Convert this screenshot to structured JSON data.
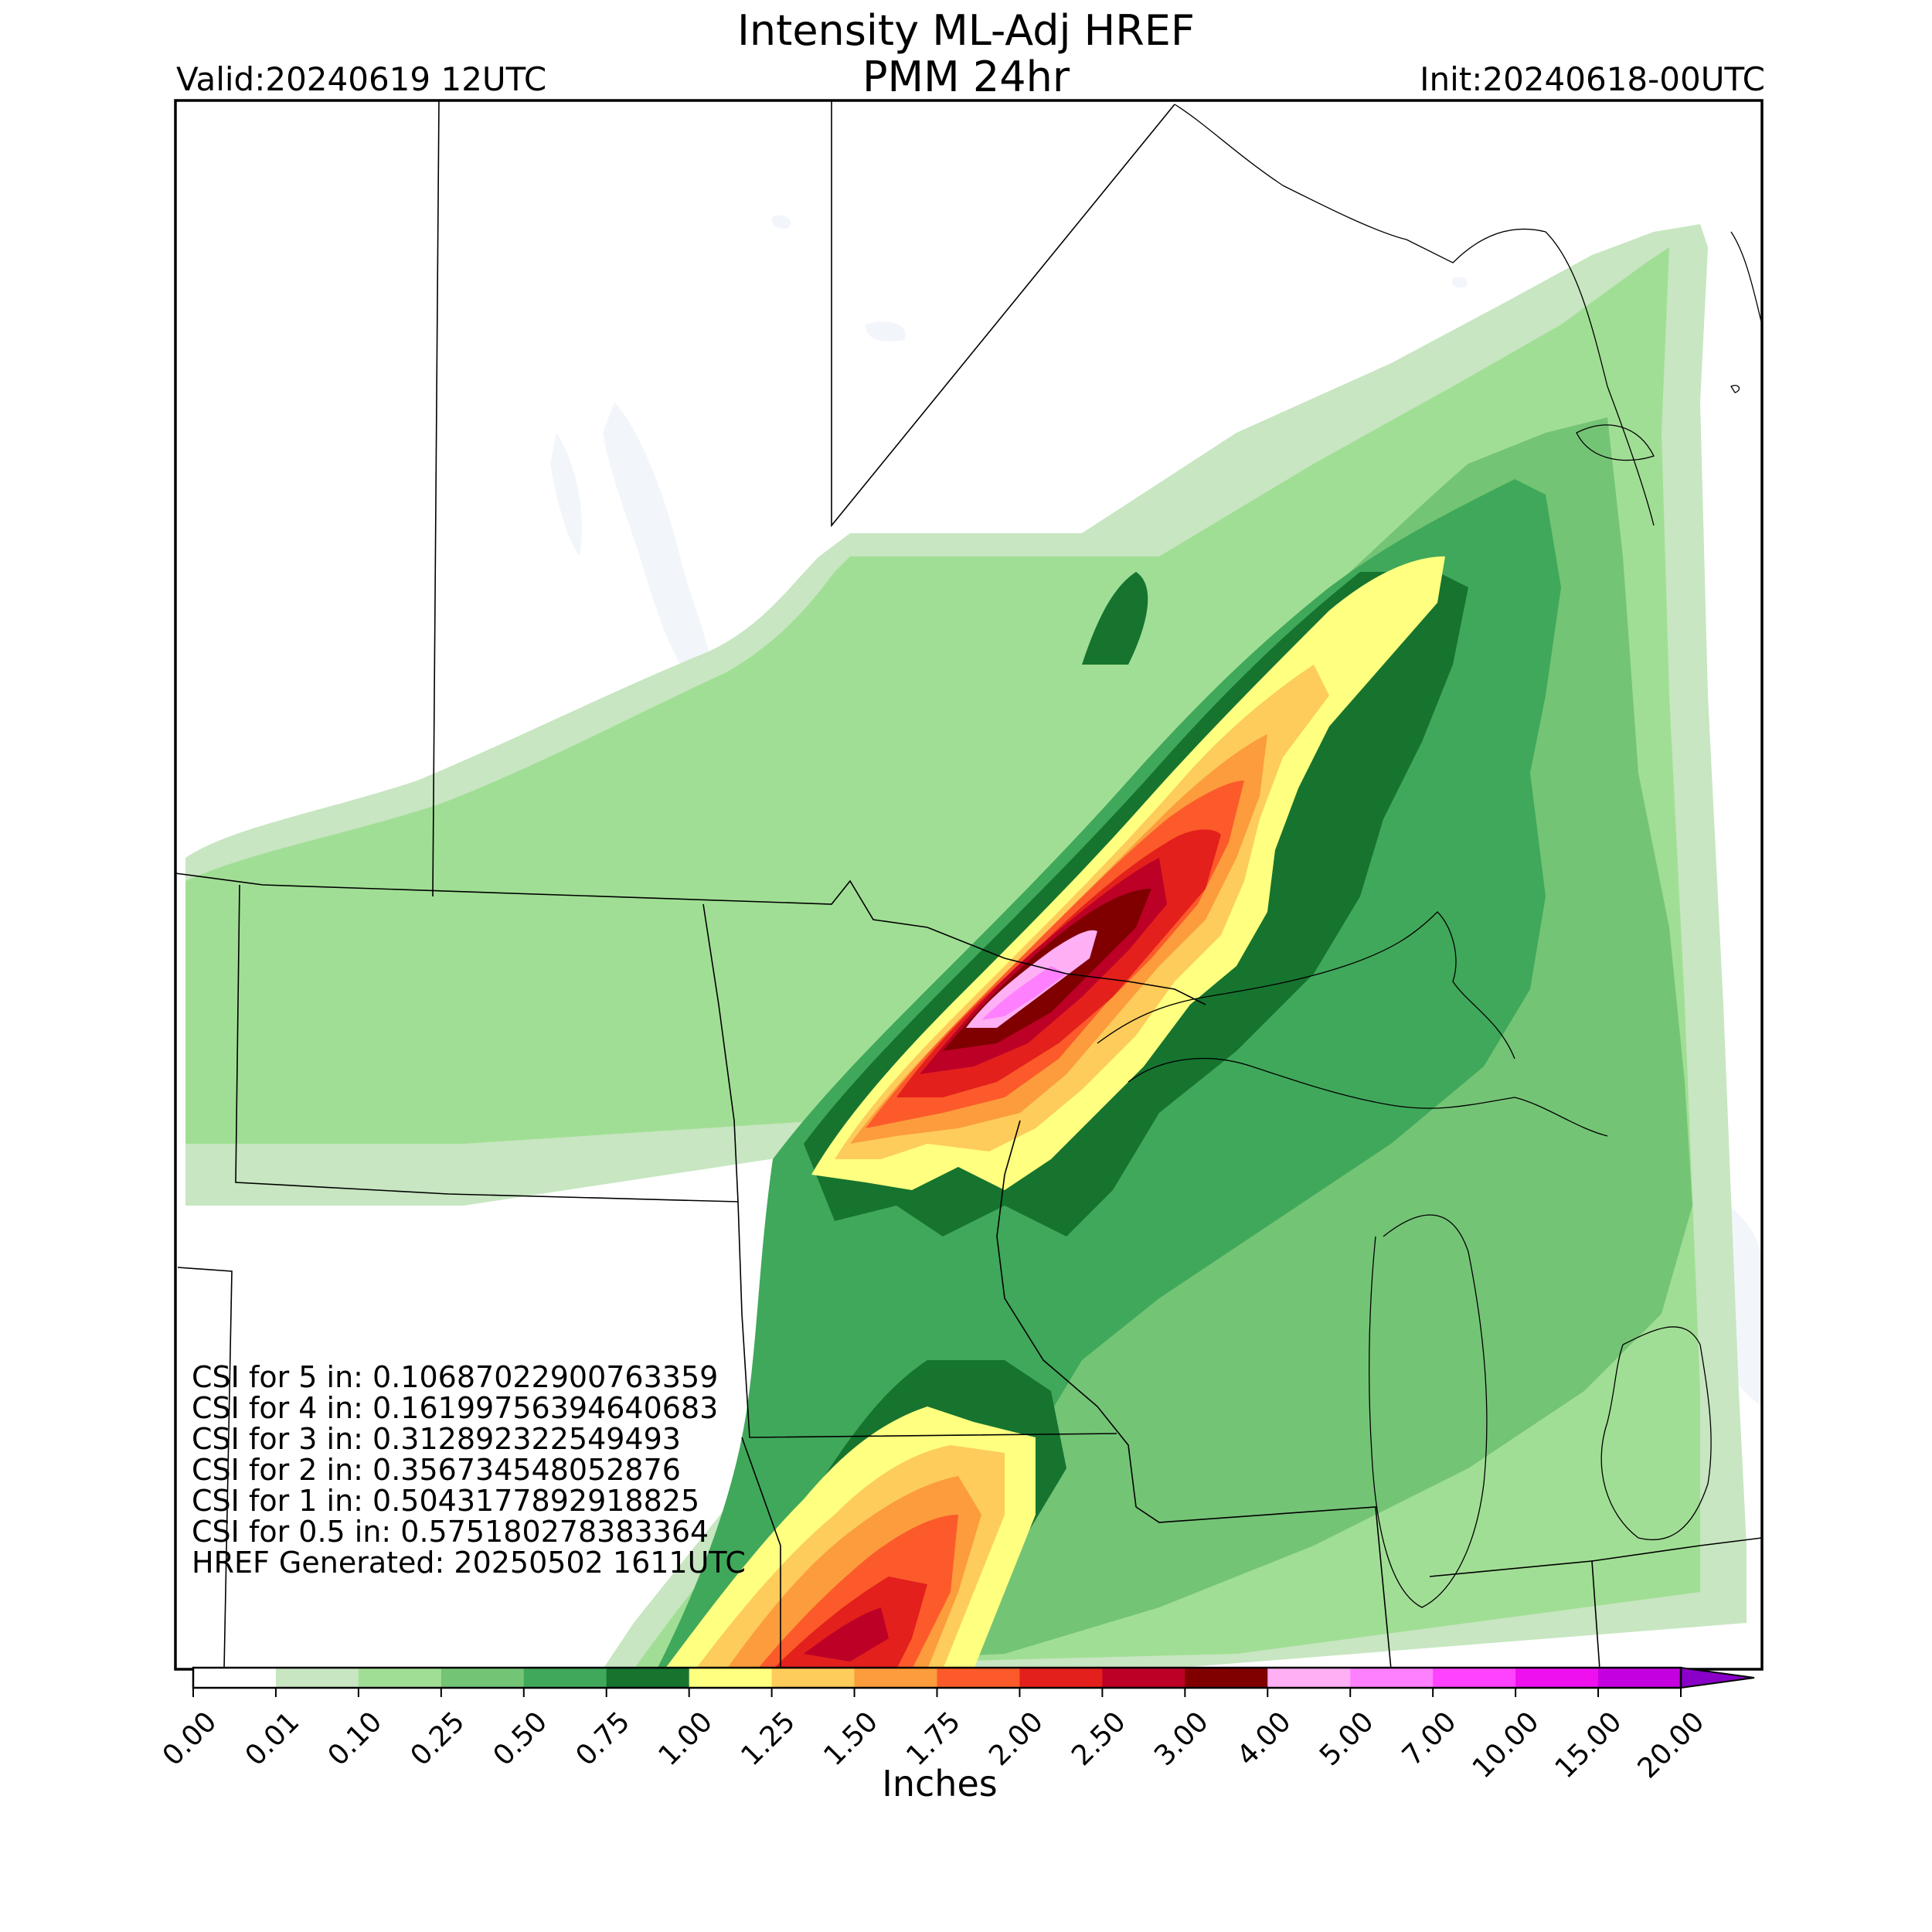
{
  "header": {
    "title_line1": "Intensity ML-Adj HREF",
    "title_line2": "PMM 24hr",
    "valid": "Valid:20240619 12UTC",
    "init": "Init:20240618-00UTC"
  },
  "stats": [
    "CSI for 5 in: 0.10687022900763359",
    "CSI for 4 in: 0.16199756394640683",
    "CSI for 3 in: 0.312892322549493",
    "CSI for 2 in: 0.356734548052876",
    "CSI for 1 in: 0.5043177892918825",
    "CSI for 0.5 in: 0.575180278383364",
    "HREF Generated: 20250502 1611UTC"
  ],
  "colorbar": {
    "units_label": "Inches",
    "ticks": [
      "0.00",
      "0.01",
      "0.10",
      "0.25",
      "0.50",
      "0.75",
      "1.00",
      "1.25",
      "1.50",
      "1.75",
      "2.00",
      "2.50",
      "3.00",
      "4.00",
      "5.00",
      "7.00",
      "10.00",
      "15.00",
      "20.00"
    ],
    "colors": [
      "#ffffff",
      "#c7e6c1",
      "#a1de95",
      "#74c476",
      "#40a85a",
      "#16742f",
      "#ffff80",
      "#fdcc5a",
      "#fc9c3c",
      "#fc5a2a",
      "#e3201c",
      "#bd0026",
      "#800000",
      "#ffb0f4",
      "#ff80ff",
      "#ff42ff",
      "#ee10ee",
      "#c400e0"
    ],
    "extend_color": "#8a00c8"
  },
  "legend_colors": {
    "land": "#ffffff",
    "water": "#f2f6fb",
    "border": "#000000"
  }
}
